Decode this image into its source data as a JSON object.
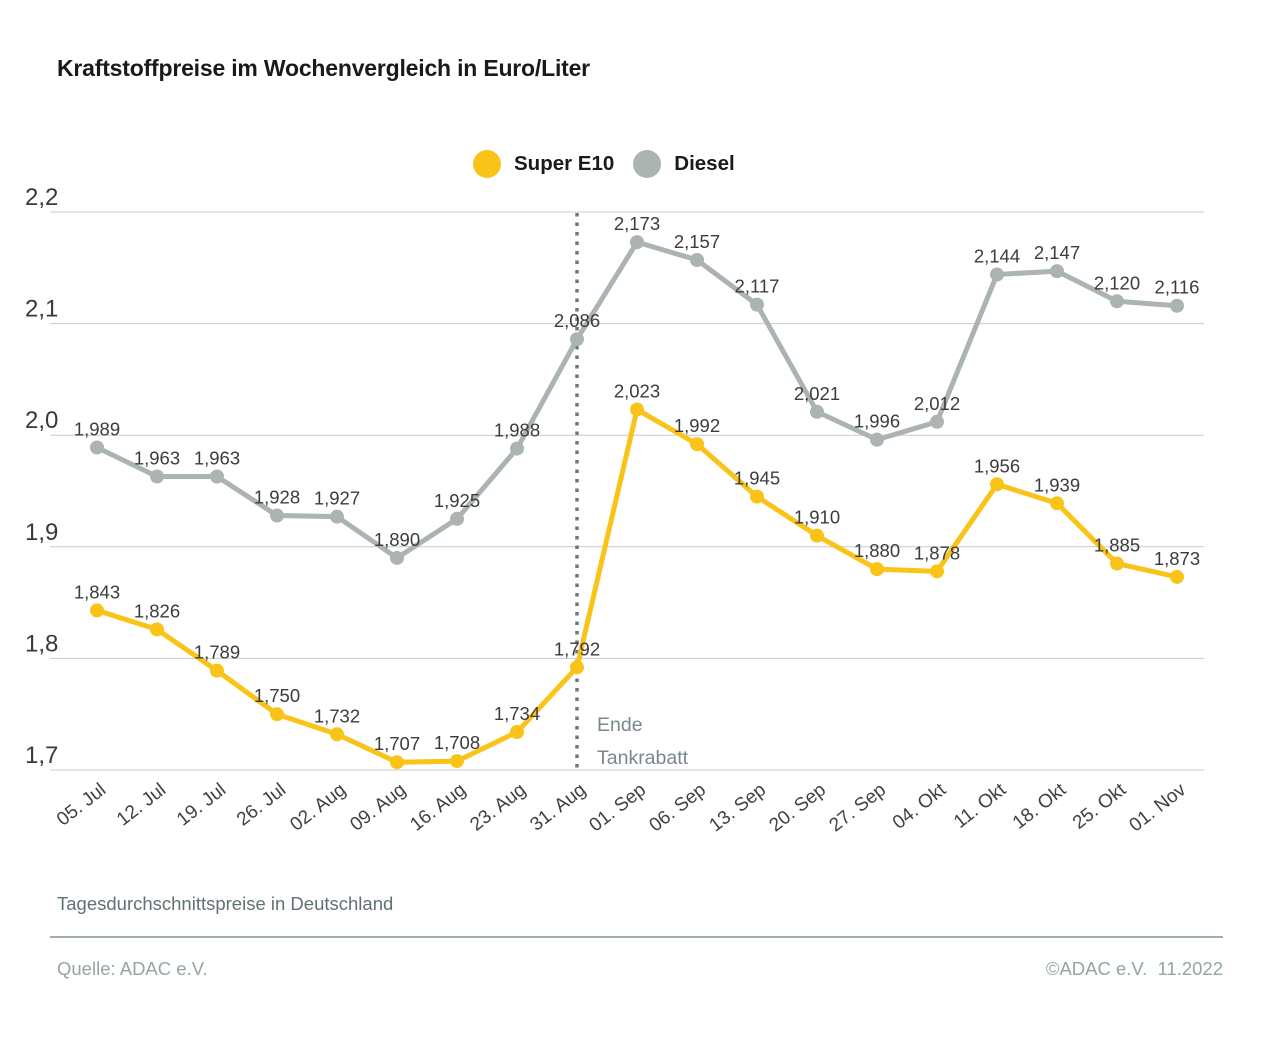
{
  "title": "Kraftstoffpreise im Wochenvergleich in Euro/Liter",
  "legend": {
    "items": [
      {
        "id": "super-e10",
        "label": "Super E10",
        "color": "#F9C318"
      },
      {
        "id": "diesel",
        "label": "Diesel",
        "color": "#ABB4B2"
      }
    ]
  },
  "annotation": {
    "lines": [
      "Ende",
      "Tankrabatt"
    ],
    "at_x_label": "31. Aug",
    "color": "#76898b",
    "line_color": "#6b797c"
  },
  "footer": {
    "subtitle": "Tagesdurchschnittspreise in Deutschland",
    "source": "Quelle: ADAC e.V.",
    "copyright": "©ADAC e.V.  11.2022"
  },
  "chart_data": {
    "type": "line",
    "title": "Kraftstoffpreise im Wochenvergleich in Euro/Liter",
    "unit": "Euro/Liter",
    "categories": [
      "05. Jul",
      "12. Jul",
      "19. Jul",
      "26. Jul",
      "02. Aug",
      "09. Aug",
      "16. Aug",
      "23. Aug",
      "31. Aug",
      "01. Sep",
      "06. Sep",
      "13. Sep",
      "20. Sep",
      "27. Sep",
      "04. Okt",
      "11. Okt",
      "18. Okt",
      "25. Okt",
      "01. Nov"
    ],
    "series": [
      {
        "id": "super-e10",
        "name": "Super E10",
        "color": "#F9C318",
        "values": [
          1.843,
          1.826,
          1.789,
          1.75,
          1.732,
          1.707,
          1.708,
          1.734,
          1.792,
          2.023,
          1.992,
          1.945,
          1.91,
          1.88,
          1.878,
          1.956,
          1.939,
          1.885,
          1.873
        ]
      },
      {
        "id": "diesel",
        "name": "Diesel",
        "color": "#ABB4B2",
        "values": [
          1.989,
          1.963,
          1.963,
          1.928,
          1.927,
          1.89,
          1.925,
          1.988,
          2.086,
          2.173,
          2.157,
          2.117,
          2.021,
          1.996,
          2.012,
          2.144,
          2.147,
          2.12,
          2.116
        ]
      }
    ],
    "ylim": [
      1.7,
      2.2
    ],
    "yticks": [
      2.2,
      2.1,
      2.0,
      1.9,
      1.8,
      1.7
    ],
    "ytick_labels": [
      "2,2",
      "2,1",
      "2,0",
      "1,9",
      "1,8",
      "1,7"
    ],
    "grid": true,
    "grid_color": "#c8cccc",
    "value_label_color": "#3c3c3c",
    "axis_label_color": "#3c4246",
    "legend_position": "top-center",
    "value_labels": true,
    "decimal_separator": ","
  }
}
